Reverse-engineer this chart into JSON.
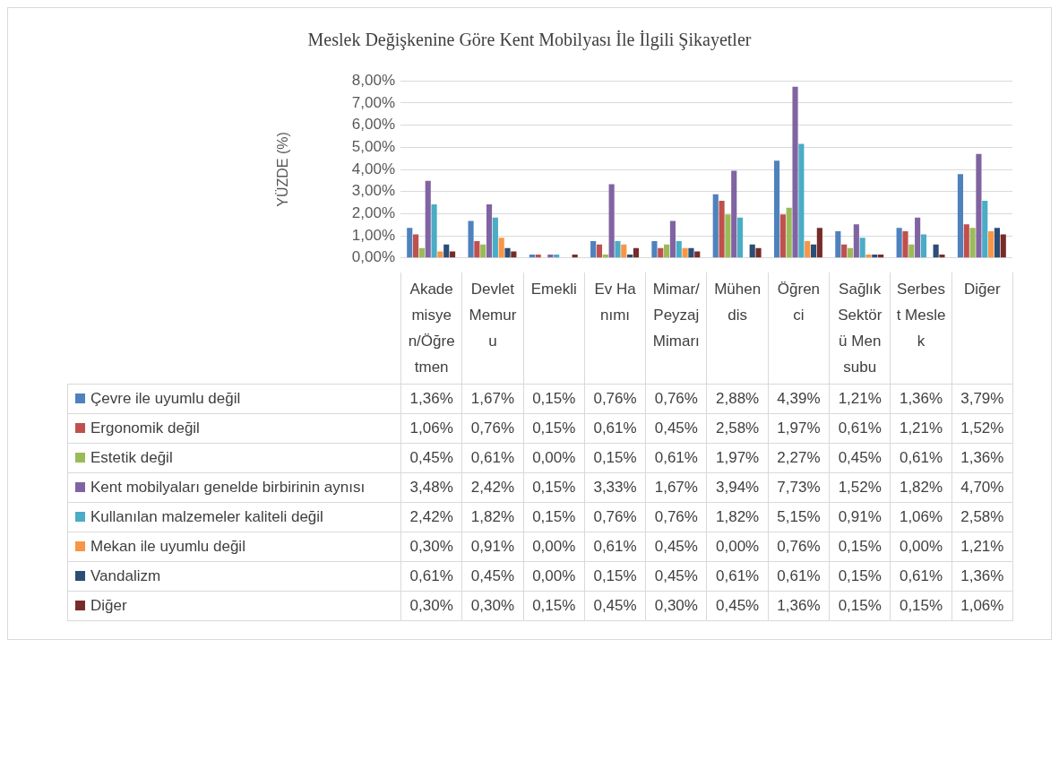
{
  "chart_data": {
    "type": "bar",
    "title": "Meslek Değişkenine Göre Kent Mobilyası İle İlgili Şikayetler",
    "ylabel": "YÜZDE (%)",
    "categories": [
      "Akademisyen/Öğretmen",
      "Devlet Memuru",
      "Emekli",
      "Ev Hanımı",
      "Mimar/Peyzaj Mimarı",
      "Mühendis",
      "Öğrenci",
      "Sağlık Sektörü Mensubu",
      "Serbest Meslek",
      "Diğer"
    ],
    "ylim": [
      0,
      8
    ],
    "yticks": [
      {
        "value": 0,
        "label": "0,00%"
      },
      {
        "value": 1,
        "label": "1,00%"
      },
      {
        "value": 2,
        "label": "2,00%"
      },
      {
        "value": 3,
        "label": "3,00%"
      },
      {
        "value": 4,
        "label": "4,00%"
      },
      {
        "value": 5,
        "label": "5,00%"
      },
      {
        "value": 6,
        "label": "6,00%"
      },
      {
        "value": 7,
        "label": "7,00%"
      },
      {
        "value": 8,
        "label": "8,00%"
      }
    ],
    "grid": "y",
    "legend": "bottom",
    "series": [
      {
        "name": "Çevre ile uyumlu değil",
        "color": "#4f81bd",
        "values": [
          1.36,
          1.67,
          0.15,
          0.76,
          0.76,
          2.88,
          4.39,
          1.21,
          1.36,
          3.79
        ],
        "value_labels": [
          "1,36%",
          "1,67%",
          "0,15%",
          "0,76%",
          "0,76%",
          "2,88%",
          "4,39%",
          "1,21%",
          "1,36%",
          "3,79%"
        ]
      },
      {
        "name": "Ergonomik değil",
        "color": "#c0504d",
        "values": [
          1.06,
          0.76,
          0.15,
          0.61,
          0.45,
          2.58,
          1.97,
          0.61,
          1.21,
          1.52
        ],
        "value_labels": [
          "1,06%",
          "0,76%",
          "0,15%",
          "0,61%",
          "0,45%",
          "2,58%",
          "1,97%",
          "0,61%",
          "1,21%",
          "1,52%"
        ]
      },
      {
        "name": "Estetik değil",
        "color": "#9bbb59",
        "values": [
          0.45,
          0.61,
          0,
          0.15,
          0.61,
          1.97,
          2.27,
          0.45,
          0.61,
          1.36
        ],
        "value_labels": [
          "0,45%",
          "0,61%",
          "0,00%",
          "0,15%",
          "0,61%",
          "1,97%",
          "2,27%",
          "0,45%",
          "0,61%",
          "1,36%"
        ]
      },
      {
        "name": "Kent mobilyaları genelde birbirinin aynısı",
        "color": "#8064a2",
        "values": [
          3.48,
          2.42,
          0.15,
          3.33,
          1.67,
          3.94,
          7.73,
          1.52,
          1.82,
          4.7
        ],
        "value_labels": [
          "3,48%",
          "2,42%",
          "0,15%",
          "3,33%",
          "1,67%",
          "3,94%",
          "7,73%",
          "1,52%",
          "1,82%",
          "4,70%"
        ]
      },
      {
        "name": "Kullanılan malzemeler kaliteli değil",
        "color": "#4bacc6",
        "values": [
          2.42,
          1.82,
          0.15,
          0.76,
          0.76,
          1.82,
          5.15,
          0.91,
          1.06,
          2.58
        ],
        "value_labels": [
          "2,42%",
          "1,82%",
          "0,15%",
          "0,76%",
          "0,76%",
          "1,82%",
          "5,15%",
          "0,91%",
          "1,06%",
          "2,58%"
        ]
      },
      {
        "name": "Mekan ile uyumlu değil",
        "color": "#f79646",
        "values": [
          0.3,
          0.91,
          0,
          0.61,
          0.45,
          0,
          0.76,
          0.15,
          0,
          1.21
        ],
        "value_labels": [
          "0,30%",
          "0,91%",
          "0,00%",
          "0,61%",
          "0,45%",
          "0,00%",
          "0,76%",
          "0,15%",
          "0,00%",
          "1,21%"
        ]
      },
      {
        "name": "Vandalizm",
        "color": "#2c4d75",
        "values": [
          0.61,
          0.45,
          0,
          0.15,
          0.45,
          0.61,
          0.61,
          0.15,
          0.61,
          1.36
        ],
        "value_labels": [
          "0,61%",
          "0,45%",
          "0,00%",
          "0,15%",
          "0,45%",
          "0,61%",
          "0,61%",
          "0,15%",
          "0,61%",
          "1,36%"
        ]
      },
      {
        "name": "Diğer",
        "color": "#772c2a",
        "values": [
          0.3,
          0.3,
          0.15,
          0.45,
          0.3,
          0.45,
          1.36,
          0.15,
          0.15,
          1.06
        ],
        "value_labels": [
          "0,30%",
          "0,30%",
          "0,15%",
          "0,45%",
          "0,30%",
          "0,45%",
          "1,36%",
          "0,15%",
          "0,15%",
          "1,06%"
        ]
      }
    ]
  }
}
